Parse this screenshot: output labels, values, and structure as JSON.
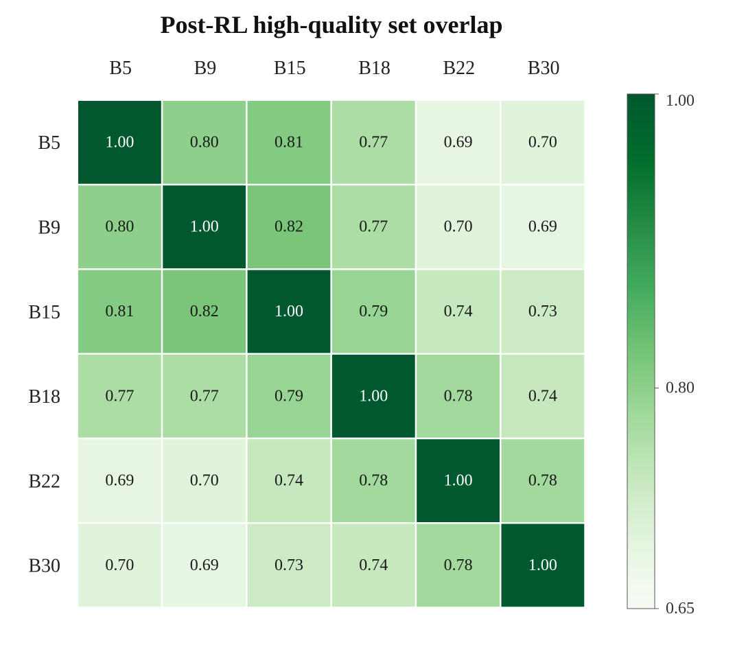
{
  "chart_data": {
    "type": "heatmap",
    "title": "Post-RL high-quality set overlap",
    "x_labels": [
      "B5",
      "B9",
      "B15",
      "B18",
      "B22",
      "B30"
    ],
    "y_labels": [
      "B5",
      "B9",
      "B15",
      "B18",
      "B22",
      "B30"
    ],
    "values": [
      [
        1.0,
        0.8,
        0.81,
        0.77,
        0.69,
        0.7
      ],
      [
        0.8,
        1.0,
        0.82,
        0.77,
        0.7,
        0.69
      ],
      [
        0.81,
        0.82,
        1.0,
        0.79,
        0.74,
        0.73
      ],
      [
        0.77,
        0.77,
        0.79,
        1.0,
        0.78,
        0.74
      ],
      [
        0.69,
        0.7,
        0.74,
        0.78,
        1.0,
        0.78
      ],
      [
        0.7,
        0.69,
        0.73,
        0.74,
        0.78,
        1.0
      ]
    ],
    "value_format": "0.00",
    "colormap": "Greens",
    "vmin": 0.65,
    "vmax": 1.0,
    "colorbar": {
      "position": "right",
      "ticks": [
        {
          "value": 0.65,
          "label": "0.65"
        },
        {
          "value": 0.8,
          "label": "0.80"
        },
        {
          "value": 1.0,
          "label": "1.00"
        }
      ]
    },
    "colors": {
      "low": "#f7fcf5",
      "high": "#00582f",
      "text_dark": "#1a1a1a",
      "text_light": "#ffffff",
      "grid": "#ffffff"
    }
  }
}
